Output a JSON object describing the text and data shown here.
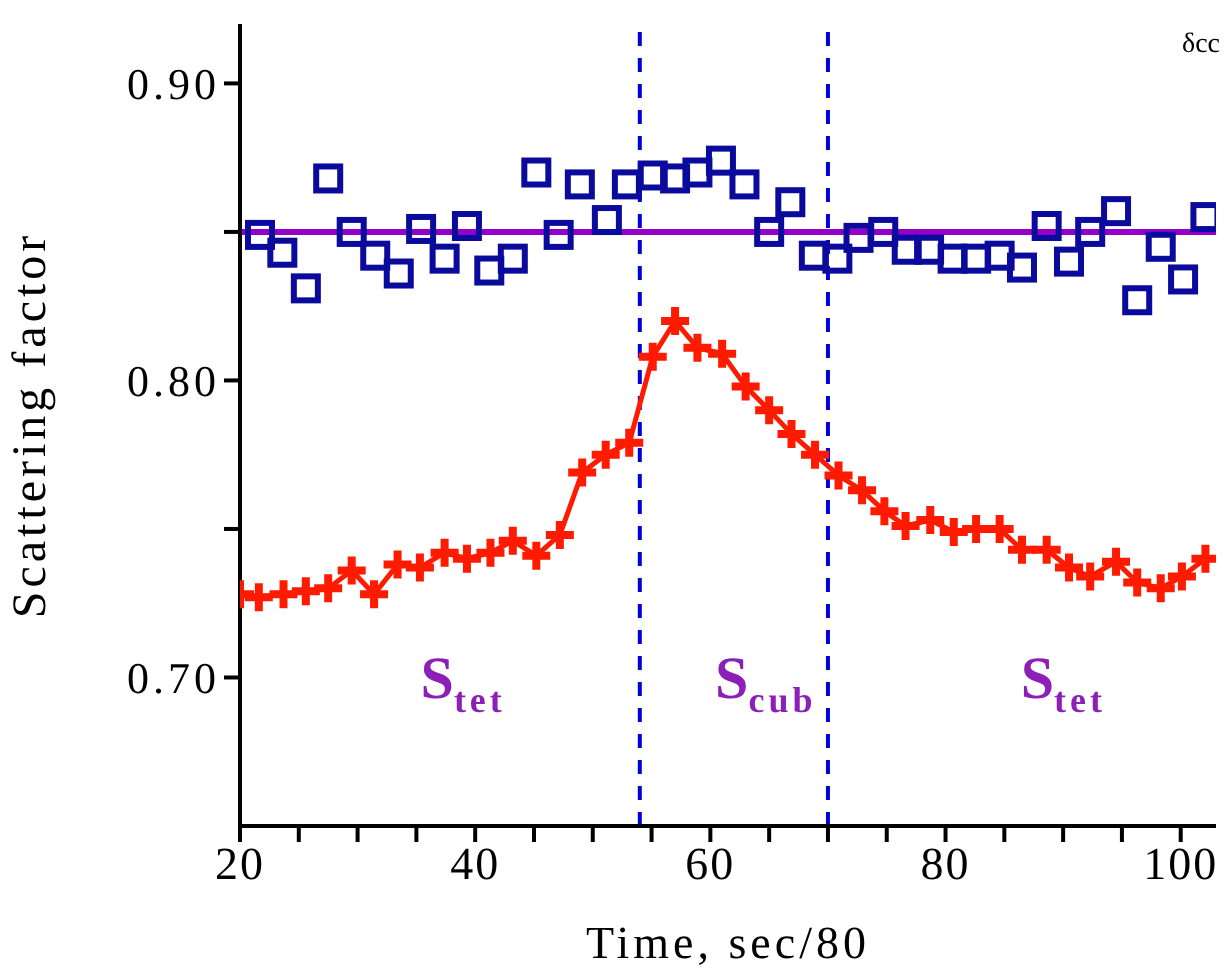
{
  "chart_data": {
    "type": "line",
    "xlabel": "Time, sec/80",
    "ylabel": "Scattering factor",
    "xlim": [
      20,
      103
    ],
    "ylim": [
      0.65,
      0.92
    ],
    "xticks": [
      20,
      {
        "value": 25,
        "label": null
      },
      {
        "value": 30,
        "label": null
      },
      {
        "value": 35,
        "label": null
      },
      40,
      {
        "value": 45,
        "label": null
      },
      {
        "value": 50,
        "label": null
      },
      {
        "value": 55,
        "label": null
      },
      60,
      {
        "value": 65,
        "label": null
      },
      {
        "value": 70,
        "label": null
      },
      {
        "value": 75,
        "label": null
      },
      80,
      {
        "value": 85,
        "label": null
      },
      {
        "value": 90,
        "label": null
      },
      {
        "value": 95,
        "label": null
      },
      100
    ],
    "yticks": [
      {
        "value": 0.7,
        "label": "0.70"
      },
      {
        "value": 0.75,
        "label": null
      },
      {
        "value": 0.8,
        "label": "0.80"
      },
      {
        "value": 0.85,
        "label": null
      },
      {
        "value": 0.9,
        "label": "0.90"
      }
    ],
    "series": [
      {
        "type": "scatter",
        "marker": "square",
        "color": "#0a0a9c",
        "x": [
          21.7,
          23.6,
          25.6,
          27.5,
          29.5,
          31.5,
          33.5,
          35.4,
          37.4,
          39.3,
          41.2,
          43.2,
          45.2,
          47.1,
          48.9,
          51.2,
          52.9,
          55.1,
          57,
          58.9,
          60.9,
          62.9,
          65,
          66.8,
          68.8,
          70.8,
          72.6,
          74.7,
          76.7,
          78.6,
          80.6,
          82.6,
          84.6,
          86.5,
          88.6,
          90.5,
          92.3,
          94.5,
          96.3,
          98.3,
          100.2,
          102.1
        ],
        "values": [
          0.849,
          0.843,
          0.831,
          0.868,
          0.85,
          0.842,
          0.836,
          0.851,
          0.841,
          0.852,
          0.837,
          0.841,
          0.87,
          0.849,
          0.866,
          0.854,
          0.866,
          0.869,
          0.868,
          0.87,
          0.874,
          0.866,
          0.85,
          0.86,
          0.842,
          0.841,
          0.848,
          0.85,
          0.844,
          0.844,
          0.841,
          0.841,
          0.842,
          0.838,
          0.852,
          0.84,
          0.85,
          0.857,
          0.827,
          0.845,
          0.834,
          0.855
        ]
      },
      {
        "marker": "cross",
        "color": "#ff1a00",
        "x": [
          20,
          21.6,
          23.7,
          25.6,
          27.5,
          29.5,
          31.4,
          33.4,
          35.3,
          37.4,
          39.3,
          41.3,
          43.2,
          45.2,
          47.2,
          49.1,
          51.1,
          53.1,
          55.1,
          57,
          58.9,
          61,
          63,
          65,
          66.9,
          68.9,
          70.9,
          72.9,
          74.8,
          76.6,
          78.7,
          80.7,
          82.6,
          84.6,
          86.5,
          88.6,
          90.5,
          92.3,
          94.5,
          96.3,
          98.3,
          100.1,
          102.1
        ],
        "values": [
          0.728,
          0.727,
          0.728,
          0.729,
          0.73,
          0.736,
          0.728,
          0.738,
          0.737,
          0.742,
          0.74,
          0.742,
          0.746,
          0.741,
          0.748,
          0.769,
          0.775,
          0.779,
          0.808,
          0.82,
          0.811,
          0.809,
          0.798,
          0.79,
          0.782,
          0.775,
          0.768,
          0.763,
          0.756,
          0.751,
          0.753,
          0.749,
          0.75,
          0.75,
          0.743,
          0.743,
          0.737,
          0.734,
          0.739,
          0.732,
          0.73,
          0.734,
          0.74
        ]
      }
    ],
    "ref_lines": [
      {
        "axis": "y",
        "value": 0.85,
        "color": "#9400c8",
        "line_style": "solid"
      },
      {
        "axis": "x",
        "value": 54,
        "color": "#0000dd",
        "line_style": "dashed"
      },
      {
        "axis": "x",
        "value": 70,
        "color": "#0000dd",
        "line_style": "dashed"
      }
    ],
    "annotations": [
      "S$_{tet}$",
      "S$_{cub}$",
      "S$_{tet}$",
      "δcc"
    ]
  }
}
